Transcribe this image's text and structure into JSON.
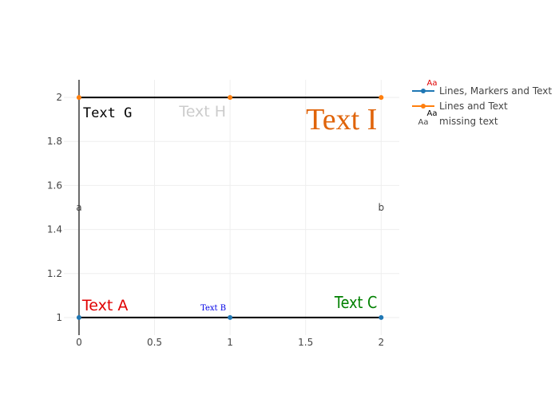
{
  "chart_data": {
    "type": "scatter",
    "title": "",
    "xlabel": "",
    "ylabel": "",
    "xlim": [
      -0.1,
      2.12
    ],
    "ylim": [
      0.92,
      2.08
    ],
    "x_ticks": [
      0,
      0.5,
      1,
      1.5,
      2
    ],
    "x_tick_labels": [
      "0",
      "0.5",
      "1",
      "1.5",
      "2"
    ],
    "y_ticks": [
      1,
      1.2,
      1.4,
      1.6,
      1.8,
      2
    ],
    "y_tick_labels": [
      "1",
      "1.2",
      "1.4",
      "1.6",
      "1.8",
      "2"
    ],
    "grid": true,
    "legend_position": "top-right",
    "series": [
      {
        "name": "Lines, Markers and Text",
        "color": "#1f77b4",
        "x": [
          0,
          1,
          2
        ],
        "y": [
          1,
          1,
          1
        ],
        "text": [
          "Text A",
          "Text B",
          "Text C"
        ],
        "text_colors": [
          "#e00000",
          "#0000e6",
          "#008000"
        ],
        "legend_sample": "Aa",
        "legend_sample_color": "#e00000"
      },
      {
        "name": "Lines and Text",
        "color": "#ff7f0e",
        "x": [
          0,
          1,
          2
        ],
        "y": [
          2,
          2,
          2
        ],
        "text": [
          "Text G",
          "Text H",
          "Text I"
        ],
        "text_colors": [
          "#000000",
          "#cccccc",
          "#e0640a"
        ],
        "legend_sample": "Aa",
        "legend_sample_color": "#000000"
      },
      {
        "name": "missing text",
        "x": [
          0,
          2
        ],
        "y": [
          1.5,
          1.5
        ],
        "text": [
          "a",
          "b"
        ],
        "text_colors": [
          "#444444",
          "#444444"
        ],
        "legend_sample": "Aa",
        "legend_sample_color": "#444444"
      }
    ],
    "lines": [
      {
        "x": [
          0,
          2
        ],
        "y": [
          1,
          1
        ],
        "color": "#000000"
      },
      {
        "x": [
          0,
          2
        ],
        "y": [
          2,
          2
        ],
        "color": "#000000"
      },
      {
        "x": [
          0,
          0
        ],
        "y": [
          0.92,
          2.08
        ],
        "color": "#666666"
      }
    ]
  }
}
